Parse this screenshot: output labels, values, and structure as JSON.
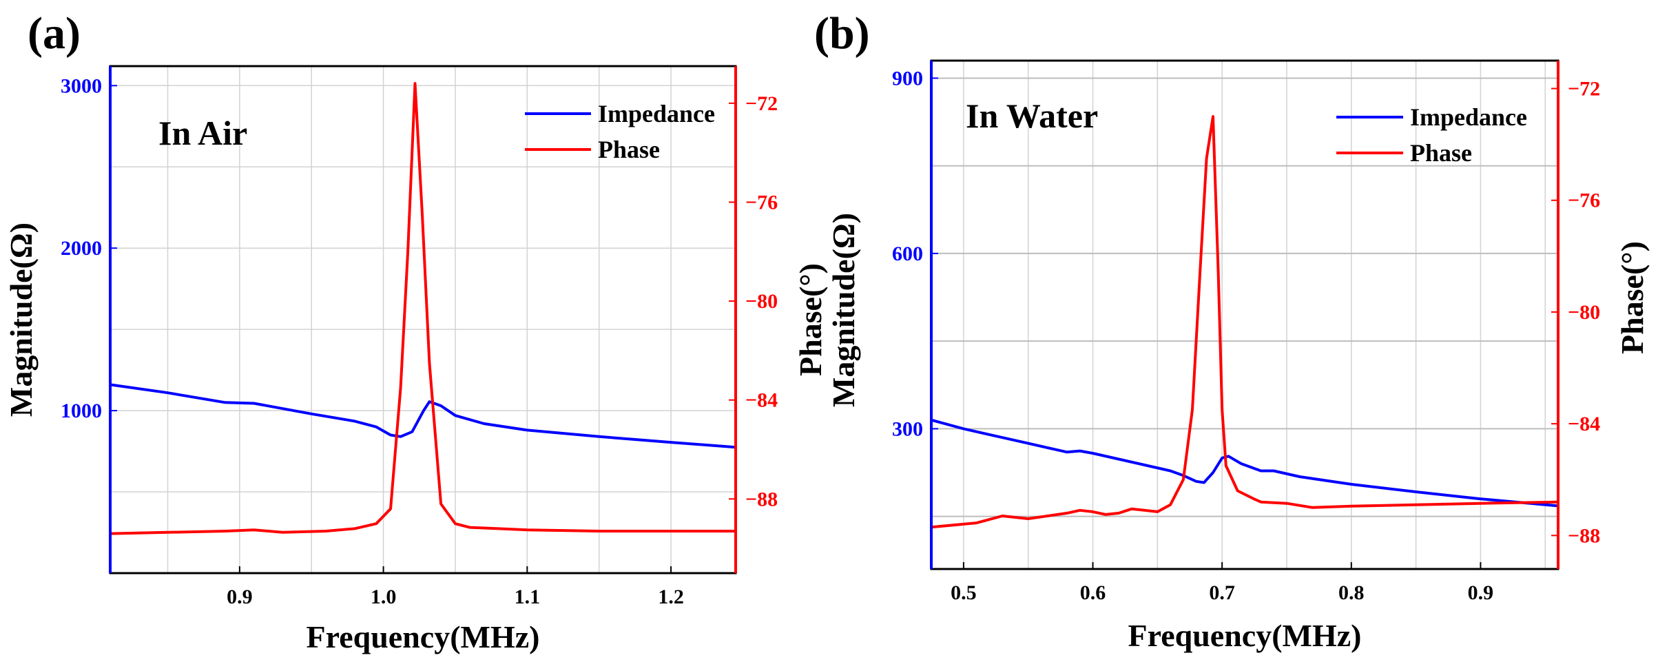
{
  "colors": {
    "impedance": "#0000ff",
    "phase": "#ff0000",
    "frame": "#000000"
  },
  "chart_data": [
    {
      "type": "line",
      "panel_label": "(a)",
      "annotation": "In Air",
      "xlabel": "Frequency(MHz)",
      "ylabel_left": "Magnitude(Ω)",
      "ylabel_right": "Phase(°)",
      "xlim": [
        0.81,
        1.245
      ],
      "ylim_left": [
        0,
        3120
      ],
      "ylim_right": [
        -91.0,
        -70.5
      ],
      "x_ticks": [
        0.9,
        1.0,
        1.1,
        1.2
      ],
      "x_tick_labels": [
        "0.9",
        "1.0",
        "1.1",
        "1.2"
      ],
      "y_left_ticks": [
        1000,
        2000,
        3000
      ],
      "y_left_tick_labels": [
        "1000",
        "2000",
        "3000"
      ],
      "y_right_ticks": [
        -72,
        -76,
        -80,
        -84,
        -88
      ],
      "y_right_tick_labels": [
        "−72",
        "−76",
        "−80",
        "−84",
        "−88"
      ],
      "legend": {
        "position": "top-right",
        "entries": [
          "Impedance",
          "Phase"
        ]
      },
      "series": [
        {
          "name": "Impedance",
          "axis": "left",
          "x": [
            0.81,
            0.85,
            0.89,
            0.91,
            0.95,
            0.98,
            0.995,
            1.005,
            1.012,
            1.02,
            1.028,
            1.032,
            1.04,
            1.05,
            1.07,
            1.1,
            1.15,
            1.2,
            1.245
          ],
          "y": [
            1160,
            1110,
            1050,
            1045,
            980,
            935,
            900,
            850,
            840,
            870,
            1000,
            1055,
            1030,
            970,
            920,
            880,
            840,
            805,
            775
          ]
        },
        {
          "name": "Phase",
          "axis": "right",
          "x": [
            0.81,
            0.85,
            0.89,
            0.91,
            0.93,
            0.96,
            0.98,
            0.995,
            1.005,
            1.012,
            1.017,
            1.022,
            1.027,
            1.032,
            1.04,
            1.05,
            1.06,
            1.08,
            1.1,
            1.15,
            1.2,
            1.245
          ],
          "y": [
            -89.4,
            -89.35,
            -89.3,
            -89.25,
            -89.35,
            -89.3,
            -89.2,
            -89.0,
            -88.4,
            -83.5,
            -78.0,
            -71.2,
            -76.5,
            -82.5,
            -88.2,
            -89.0,
            -89.15,
            -89.2,
            -89.25,
            -89.3,
            -89.3,
            -89.3
          ]
        }
      ]
    },
    {
      "type": "line",
      "panel_label": "(b)",
      "annotation": "In Water",
      "xlabel": "Frequency(MHz)",
      "ylabel_left": "Magnitude(Ω)",
      "ylabel_right": "Phase(°)",
      "xlim": [
        0.475,
        0.96
      ],
      "ylim_left": [
        60,
        930
      ],
      "ylim_right": [
        -89.2,
        -71.0
      ],
      "x_ticks": [
        0.5,
        0.6,
        0.7,
        0.8,
        0.9
      ],
      "x_tick_labels": [
        "0.5",
        "0.6",
        "0.7",
        "0.8",
        "0.9"
      ],
      "y_left_ticks": [
        300,
        600,
        900
      ],
      "y_left_tick_labels": [
        "300",
        "600",
        "900"
      ],
      "y_right_ticks": [
        -72,
        -76,
        -80,
        -84,
        -88
      ],
      "y_right_tick_labels": [
        "−72",
        "−76",
        "−80",
        "−84",
        "−88"
      ],
      "legend": {
        "position": "top-right",
        "entries": [
          "Impedance",
          "Phase"
        ]
      },
      "series": [
        {
          "name": "Impedance",
          "axis": "left",
          "x": [
            0.475,
            0.5,
            0.52,
            0.55,
            0.57,
            0.58,
            0.59,
            0.6,
            0.62,
            0.64,
            0.66,
            0.67,
            0.68,
            0.686,
            0.693,
            0.7,
            0.705,
            0.715,
            0.73,
            0.74,
            0.76,
            0.8,
            0.85,
            0.9,
            0.96
          ],
          "y": [
            315,
            300,
            290,
            275,
            265,
            260,
            262,
            258,
            248,
            238,
            228,
            220,
            210,
            208,
            225,
            250,
            253,
            240,
            228,
            228,
            218,
            205,
            192,
            180,
            168
          ]
        },
        {
          "name": "Phase",
          "axis": "right",
          "x": [
            0.475,
            0.51,
            0.53,
            0.55,
            0.58,
            0.59,
            0.6,
            0.61,
            0.62,
            0.63,
            0.64,
            0.65,
            0.66,
            0.67,
            0.677,
            0.683,
            0.688,
            0.693,
            0.697,
            0.7,
            0.703,
            0.712,
            0.725,
            0.73,
            0.75,
            0.77,
            0.8,
            0.85,
            0.9,
            0.96
          ],
          "y": [
            -87.7,
            -87.55,
            -87.3,
            -87.4,
            -87.2,
            -87.1,
            -87.15,
            -87.25,
            -87.2,
            -87.05,
            -87.1,
            -87.15,
            -86.9,
            -86.0,
            -83.5,
            -78.5,
            -74.5,
            -73.0,
            -78.5,
            -83.5,
            -85.5,
            -86.4,
            -86.7,
            -86.8,
            -86.85,
            -87.0,
            -86.95,
            -86.9,
            -86.85,
            -86.8
          ]
        }
      ]
    }
  ]
}
